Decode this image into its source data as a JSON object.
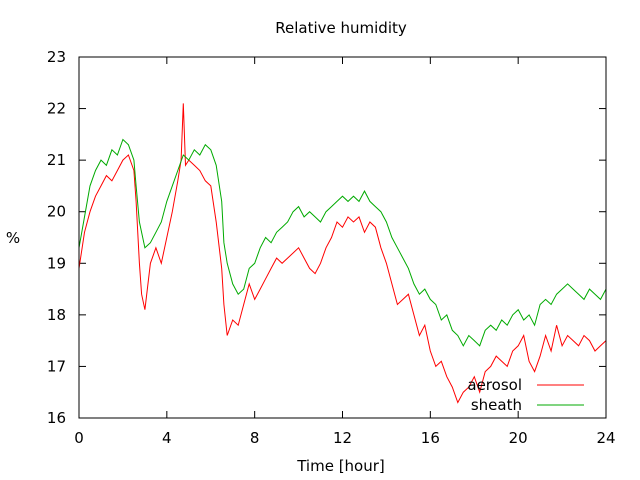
{
  "chart_data": {
    "type": "line",
    "title": "Relative humidity",
    "xlabel": "Time [hour]",
    "ylabel": "%",
    "xlim": [
      0,
      24
    ],
    "ylim": [
      16,
      23
    ],
    "xticks": [
      0,
      4,
      8,
      12,
      16,
      20,
      24
    ],
    "yticks": [
      16,
      17,
      18,
      19,
      20,
      21,
      22,
      23
    ],
    "grid": false,
    "legend_position": "bottom-right",
    "series": [
      {
        "name": "aerosol",
        "color": "#ff0000",
        "x": [
          0.0,
          0.25,
          0.5,
          0.75,
          1.0,
          1.25,
          1.5,
          1.75,
          2.0,
          2.25,
          2.5,
          2.6,
          2.75,
          2.85,
          3.0,
          3.25,
          3.5,
          3.75,
          4.0,
          4.25,
          4.5,
          4.65,
          4.75,
          4.85,
          5.0,
          5.25,
          5.5,
          5.75,
          6.0,
          6.25,
          6.5,
          6.6,
          6.75,
          7.0,
          7.25,
          7.5,
          7.75,
          8.0,
          8.25,
          8.5,
          8.75,
          9.0,
          9.25,
          9.5,
          9.75,
          10.0,
          10.25,
          10.5,
          10.75,
          11.0,
          11.25,
          11.5,
          11.75,
          12.0,
          12.25,
          12.5,
          12.75,
          13.0,
          13.25,
          13.5,
          13.75,
          14.0,
          14.25,
          14.5,
          14.75,
          15.0,
          15.25,
          15.5,
          15.75,
          16.0,
          16.25,
          16.5,
          16.75,
          17.0,
          17.25,
          17.5,
          17.75,
          18.0,
          18.25,
          18.5,
          18.75,
          19.0,
          19.25,
          19.5,
          19.75,
          20.0,
          20.25,
          20.5,
          20.75,
          21.0,
          21.25,
          21.5,
          21.75,
          22.0,
          22.25,
          22.5,
          22.75,
          23.0,
          23.25,
          23.5,
          23.75,
          24.0
        ],
        "y": [
          18.9,
          19.6,
          20.0,
          20.3,
          20.5,
          20.7,
          20.6,
          20.8,
          21.0,
          21.1,
          20.8,
          20.2,
          19.0,
          18.4,
          18.1,
          19.0,
          19.3,
          19.0,
          19.5,
          20.0,
          20.6,
          21.0,
          22.1,
          20.9,
          21.0,
          20.9,
          20.8,
          20.6,
          20.5,
          19.8,
          18.9,
          18.2,
          17.6,
          17.9,
          17.8,
          18.2,
          18.6,
          18.3,
          18.5,
          18.7,
          18.9,
          19.1,
          19.0,
          19.1,
          19.2,
          19.3,
          19.1,
          18.9,
          18.8,
          19.0,
          19.3,
          19.5,
          19.8,
          19.7,
          19.9,
          19.8,
          19.9,
          19.6,
          19.8,
          19.7,
          19.3,
          19.0,
          18.6,
          18.2,
          18.3,
          18.4,
          18.0,
          17.6,
          17.8,
          17.3,
          17.0,
          17.1,
          16.8,
          16.6,
          16.3,
          16.5,
          16.6,
          16.8,
          16.5,
          16.9,
          17.0,
          17.2,
          17.1,
          17.0,
          17.3,
          17.4,
          17.6,
          17.1,
          16.9,
          17.2,
          17.6,
          17.3,
          17.8,
          17.4,
          17.6,
          17.5,
          17.4,
          17.6,
          17.5,
          17.3,
          17.4,
          17.5
        ]
      },
      {
        "name": "sheath",
        "color": "#00aa00",
        "x": [
          0.0,
          0.25,
          0.5,
          0.75,
          1.0,
          1.25,
          1.5,
          1.75,
          2.0,
          2.25,
          2.5,
          2.6,
          2.75,
          3.0,
          3.25,
          3.5,
          3.75,
          4.0,
          4.25,
          4.5,
          4.75,
          5.0,
          5.25,
          5.5,
          5.75,
          6.0,
          6.25,
          6.5,
          6.6,
          6.75,
          7.0,
          7.25,
          7.5,
          7.75,
          8.0,
          8.25,
          8.5,
          8.75,
          9.0,
          9.25,
          9.5,
          9.75,
          10.0,
          10.25,
          10.5,
          10.75,
          11.0,
          11.25,
          11.5,
          11.75,
          12.0,
          12.25,
          12.5,
          12.75,
          13.0,
          13.25,
          13.5,
          13.75,
          14.0,
          14.25,
          14.5,
          14.75,
          15.0,
          15.25,
          15.5,
          15.75,
          16.0,
          16.25,
          16.5,
          16.75,
          17.0,
          17.25,
          17.5,
          17.75,
          18.0,
          18.25,
          18.5,
          18.75,
          19.0,
          19.25,
          19.5,
          19.75,
          20.0,
          20.25,
          20.5,
          20.75,
          21.0,
          21.25,
          21.5,
          21.75,
          22.0,
          22.25,
          22.5,
          22.75,
          23.0,
          23.25,
          23.5,
          23.75,
          24.0
        ],
        "y": [
          19.3,
          19.9,
          20.5,
          20.8,
          21.0,
          20.9,
          21.2,
          21.1,
          21.4,
          21.3,
          21.0,
          20.5,
          19.8,
          19.3,
          19.4,
          19.6,
          19.8,
          20.2,
          20.5,
          20.8,
          21.1,
          21.0,
          21.2,
          21.1,
          21.3,
          21.2,
          20.9,
          20.2,
          19.4,
          19.0,
          18.6,
          18.4,
          18.5,
          18.9,
          19.0,
          19.3,
          19.5,
          19.4,
          19.6,
          19.7,
          19.8,
          20.0,
          20.1,
          19.9,
          20.0,
          19.9,
          19.8,
          20.0,
          20.1,
          20.2,
          20.3,
          20.2,
          20.3,
          20.2,
          20.4,
          20.2,
          20.1,
          20.0,
          19.8,
          19.5,
          19.3,
          19.1,
          18.9,
          18.6,
          18.4,
          18.5,
          18.3,
          18.2,
          17.9,
          18.0,
          17.7,
          17.6,
          17.4,
          17.6,
          17.5,
          17.4,
          17.7,
          17.8,
          17.7,
          17.9,
          17.8,
          18.0,
          18.1,
          17.9,
          18.0,
          17.8,
          18.2,
          18.3,
          18.2,
          18.4,
          18.5,
          18.6,
          18.5,
          18.4,
          18.3,
          18.5,
          18.4,
          18.3,
          18.5
        ]
      }
    ]
  }
}
